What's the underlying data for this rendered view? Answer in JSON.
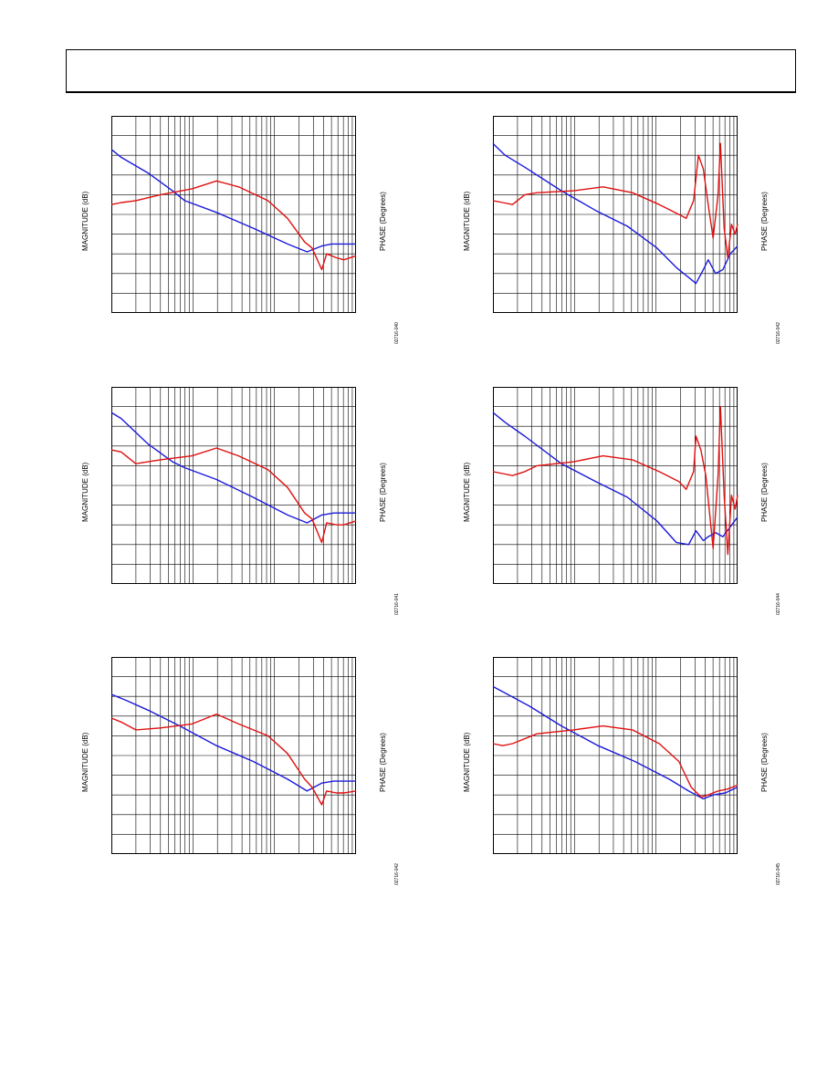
{
  "page": {
    "header": ""
  },
  "colors": {
    "magnitude": "#1a1adb",
    "phase": "#e01010",
    "grid": "#000000"
  },
  "chart_data": [
    {
      "id": "p1",
      "type": "line",
      "x_scale": "log",
      "grid": true,
      "ylabel": "MAGNITUDE (dB)",
      "y2label": "PHASE (Degrees)",
      "fig_id": "02716-040",
      "series": [
        {
          "color": "blue",
          "points": [
            [
              0,
              0.17
            ],
            [
              0.04,
              0.21
            ],
            [
              0.15,
              0.29
            ],
            [
              0.25,
              0.38
            ],
            [
              0.3,
              0.43
            ],
            [
              0.43,
              0.49
            ],
            [
              0.58,
              0.57
            ],
            [
              0.72,
              0.65
            ],
            [
              0.8,
              0.69
            ],
            [
              0.86,
              0.66
            ],
            [
              0.9,
              0.65
            ],
            [
              1.0,
              0.65
            ]
          ]
        },
        {
          "color": "red",
          "points": [
            [
              0,
              0.45
            ],
            [
              0.04,
              0.44
            ],
            [
              0.1,
              0.43
            ],
            [
              0.2,
              0.4
            ],
            [
              0.33,
              0.37
            ],
            [
              0.43,
              0.33
            ],
            [
              0.52,
              0.36
            ],
            [
              0.64,
              0.43
            ],
            [
              0.72,
              0.52
            ],
            [
              0.79,
              0.64
            ],
            [
              0.82,
              0.67
            ],
            [
              0.86,
              0.78
            ],
            [
              0.88,
              0.7
            ],
            [
              0.92,
              0.72
            ],
            [
              0.95,
              0.73
            ],
            [
              1.0,
              0.71
            ]
          ]
        }
      ]
    },
    {
      "id": "p2",
      "type": "line",
      "x_scale": "log",
      "grid": true,
      "ylabel": "MAGNITUDE (dB)",
      "y2label": "PHASE (Degrees)",
      "fig_id": "02716-042",
      "series": [
        {
          "color": "blue",
          "points": [
            [
              0,
              0.14
            ],
            [
              0.05,
              0.2
            ],
            [
              0.13,
              0.26
            ],
            [
              0.28,
              0.38
            ],
            [
              0.42,
              0.48
            ],
            [
              0.55,
              0.56
            ],
            [
              0.67,
              0.67
            ],
            [
              0.75,
              0.77
            ],
            [
              0.8,
              0.82
            ],
            [
              0.83,
              0.85
            ],
            [
              0.86,
              0.78
            ],
            [
              0.88,
              0.73
            ],
            [
              0.91,
              0.8
            ],
            [
              0.94,
              0.78
            ],
            [
              0.97,
              0.7
            ],
            [
              1.0,
              0.66
            ]
          ]
        },
        {
          "color": "red",
          "points": [
            [
              0,
              0.43
            ],
            [
              0.04,
              0.44
            ],
            [
              0.08,
              0.45
            ],
            [
              0.13,
              0.4
            ],
            [
              0.18,
              0.39
            ],
            [
              0.33,
              0.38
            ],
            [
              0.45,
              0.36
            ],
            [
              0.57,
              0.39
            ],
            [
              0.68,
              0.45
            ],
            [
              0.76,
              0.5
            ],
            [
              0.79,
              0.52
            ],
            [
              0.82,
              0.43
            ],
            [
              0.84,
              0.2
            ],
            [
              0.86,
              0.27
            ],
            [
              0.88,
              0.45
            ],
            [
              0.9,
              0.62
            ],
            [
              0.92,
              0.4
            ],
            [
              0.93,
              0.14
            ],
            [
              0.945,
              0.57
            ],
            [
              0.96,
              0.72
            ],
            [
              0.975,
              0.55
            ],
            [
              0.99,
              0.6
            ],
            [
              1.0,
              0.55
            ]
          ]
        }
      ]
    },
    {
      "id": "p3",
      "type": "line",
      "x_scale": "log",
      "grid": true,
      "ylabel": "MAGNITUDE (dB)",
      "y2label": "PHASE (Degrees)",
      "fig_id": "02716-041",
      "series": [
        {
          "color": "blue",
          "points": [
            [
              0,
              0.13
            ],
            [
              0.04,
              0.16
            ],
            [
              0.15,
              0.29
            ],
            [
              0.25,
              0.38
            ],
            [
              0.3,
              0.41
            ],
            [
              0.43,
              0.47
            ],
            [
              0.58,
              0.56
            ],
            [
              0.72,
              0.65
            ],
            [
              0.8,
              0.69
            ],
            [
              0.86,
              0.65
            ],
            [
              0.91,
              0.64
            ],
            [
              1.0,
              0.64
            ]
          ]
        },
        {
          "color": "red",
          "points": [
            [
              0,
              0.32
            ],
            [
              0.04,
              0.33
            ],
            [
              0.1,
              0.39
            ],
            [
              0.2,
              0.37
            ],
            [
              0.33,
              0.35
            ],
            [
              0.43,
              0.31
            ],
            [
              0.52,
              0.35
            ],
            [
              0.64,
              0.42
            ],
            [
              0.72,
              0.51
            ],
            [
              0.79,
              0.64
            ],
            [
              0.82,
              0.67
            ],
            [
              0.86,
              0.79
            ],
            [
              0.88,
              0.69
            ],
            [
              0.92,
              0.7
            ],
            [
              0.95,
              0.7
            ],
            [
              1.0,
              0.68
            ]
          ]
        }
      ]
    },
    {
      "id": "p4",
      "type": "line",
      "x_scale": "log",
      "grid": true,
      "ylabel": "MAGNITUDE (dB)",
      "y2label": "PHASE (Degrees)",
      "fig_id": "02716-044",
      "series": [
        {
          "color": "blue",
          "points": [
            [
              0,
              0.13
            ],
            [
              0.05,
              0.18
            ],
            [
              0.13,
              0.25
            ],
            [
              0.28,
              0.39
            ],
            [
              0.42,
              0.48
            ],
            [
              0.55,
              0.56
            ],
            [
              0.67,
              0.68
            ],
            [
              0.75,
              0.79
            ],
            [
              0.8,
              0.8
            ],
            [
              0.83,
              0.73
            ],
            [
              0.86,
              0.78
            ],
            [
              0.88,
              0.76
            ],
            [
              0.91,
              0.74
            ],
            [
              0.94,
              0.76
            ],
            [
              0.97,
              0.71
            ],
            [
              1.0,
              0.66
            ]
          ]
        },
        {
          "color": "red",
          "points": [
            [
              0,
              0.43
            ],
            [
              0.04,
              0.44
            ],
            [
              0.08,
              0.45
            ],
            [
              0.13,
              0.43
            ],
            [
              0.18,
              0.4
            ],
            [
              0.33,
              0.38
            ],
            [
              0.45,
              0.35
            ],
            [
              0.57,
              0.37
            ],
            [
              0.68,
              0.43
            ],
            [
              0.76,
              0.48
            ],
            [
              0.79,
              0.52
            ],
            [
              0.82,
              0.43
            ],
            [
              0.83,
              0.25
            ],
            [
              0.85,
              0.32
            ],
            [
              0.87,
              0.45
            ],
            [
              0.9,
              0.82
            ],
            [
              0.92,
              0.45
            ],
            [
              0.93,
              0.1
            ],
            [
              0.945,
              0.55
            ],
            [
              0.96,
              0.85
            ],
            [
              0.975,
              0.55
            ],
            [
              0.99,
              0.62
            ],
            [
              1.0,
              0.55
            ]
          ]
        }
      ]
    },
    {
      "id": "p5",
      "type": "line",
      "x_scale": "log",
      "grid": true,
      "ylabel": "MAGNITUDE (dB)",
      "y2label": "PHASE (Degrees)",
      "fig_id": "02716-042",
      "series": [
        {
          "color": "blue",
          "points": [
            [
              0,
              0.19
            ],
            [
              0.06,
              0.22
            ],
            [
              0.15,
              0.27
            ],
            [
              0.28,
              0.35
            ],
            [
              0.43,
              0.45
            ],
            [
              0.58,
              0.53
            ],
            [
              0.72,
              0.62
            ],
            [
              0.8,
              0.68
            ],
            [
              0.86,
              0.64
            ],
            [
              0.91,
              0.63
            ],
            [
              1.0,
              0.63
            ]
          ]
        },
        {
          "color": "red",
          "points": [
            [
              0,
              0.31
            ],
            [
              0.04,
              0.33
            ],
            [
              0.1,
              0.37
            ],
            [
              0.2,
              0.36
            ],
            [
              0.33,
              0.34
            ],
            [
              0.43,
              0.29
            ],
            [
              0.52,
              0.34
            ],
            [
              0.64,
              0.4
            ],
            [
              0.72,
              0.49
            ],
            [
              0.79,
              0.62
            ],
            [
              0.82,
              0.66
            ],
            [
              0.86,
              0.75
            ],
            [
              0.88,
              0.68
            ],
            [
              0.92,
              0.69
            ],
            [
              0.95,
              0.69
            ],
            [
              1.0,
              0.68
            ]
          ]
        }
      ]
    },
    {
      "id": "p6",
      "type": "line",
      "x_scale": "log",
      "grid": true,
      "ylabel": "MAGNITUDE (dB)",
      "y2label": "PHASE (Degrees)",
      "fig_id": "02716-045",
      "series": [
        {
          "color": "blue",
          "points": [
            [
              0,
              0.15
            ],
            [
              0.06,
              0.19
            ],
            [
              0.15,
              0.25
            ],
            [
              0.28,
              0.35
            ],
            [
              0.43,
              0.45
            ],
            [
              0.58,
              0.53
            ],
            [
              0.72,
              0.62
            ],
            [
              0.8,
              0.68
            ],
            [
              0.86,
              0.72
            ],
            [
              0.9,
              0.7
            ],
            [
              0.95,
              0.69
            ],
            [
              1.0,
              0.66
            ]
          ]
        },
        {
          "color": "red",
          "points": [
            [
              0,
              0.44
            ],
            [
              0.04,
              0.45
            ],
            [
              0.08,
              0.44
            ],
            [
              0.18,
              0.39
            ],
            [
              0.33,
              0.37
            ],
            [
              0.45,
              0.35
            ],
            [
              0.57,
              0.37
            ],
            [
              0.68,
              0.44
            ],
            [
              0.76,
              0.53
            ],
            [
              0.81,
              0.66
            ],
            [
              0.85,
              0.71
            ],
            [
              0.88,
              0.7
            ],
            [
              0.92,
              0.68
            ],
            [
              0.96,
              0.67
            ],
            [
              1.0,
              0.65
            ]
          ]
        }
      ]
    }
  ]
}
